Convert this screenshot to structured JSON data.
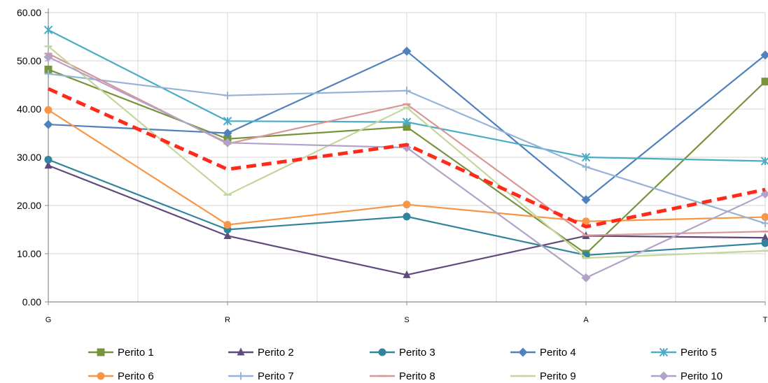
{
  "chart_data": {
    "type": "line",
    "categories": [
      "G",
      "R",
      "S",
      "A",
      "T"
    ],
    "ylim": [
      0,
      60
    ],
    "yticks": [
      "0.00",
      "10.00",
      "20.00",
      "30.00",
      "40.00",
      "50.00",
      "60.00"
    ],
    "grid": true,
    "legend_position": "bottom",
    "series": [
      {
        "name": "Perito 1",
        "color": "#77933c",
        "marker": "square",
        "values": [
          48.2,
          33.8,
          36.3,
          10.0,
          45.7
        ]
      },
      {
        "name": "Perito 2",
        "color": "#604a7b",
        "marker": "triangle",
        "values": [
          28.3,
          13.7,
          5.6,
          13.7,
          13.3
        ]
      },
      {
        "name": "Perito 3",
        "color": "#31849b",
        "marker": "circle",
        "values": [
          29.5,
          15.0,
          17.7,
          9.7,
          12.2
        ]
      },
      {
        "name": "Perito 4",
        "color": "#4f81bd",
        "marker": "diamond",
        "values": [
          36.8,
          35.0,
          52.0,
          21.2,
          51.2
        ]
      },
      {
        "name": "Perito 5",
        "color": "#4bacc6",
        "marker": "star",
        "values": [
          56.4,
          37.5,
          37.3,
          30.0,
          29.2
        ]
      },
      {
        "name": "Perito 6",
        "color": "#f79646",
        "marker": "circle",
        "values": [
          39.8,
          16.0,
          20.2,
          16.7,
          17.6
        ]
      },
      {
        "name": "Perito 7",
        "color": "#95b3d7",
        "marker": "plus",
        "values": [
          47.3,
          42.8,
          43.8,
          28.0,
          16.3
        ]
      },
      {
        "name": "Perito 8",
        "color": "#d99694",
        "marker": "dash",
        "values": [
          51.5,
          32.8,
          41.0,
          13.8,
          14.6
        ]
      },
      {
        "name": "Perito 9",
        "color": "#c3d69b",
        "marker": "dash",
        "values": [
          53.0,
          22.2,
          40.3,
          9.1,
          10.6
        ]
      },
      {
        "name": "Perito 10",
        "color": "#b3a2c7",
        "marker": "diamond",
        "values": [
          50.8,
          33.0,
          32.0,
          5.0,
          22.4
        ]
      },
      {
        "name": "",
        "color": "#ff2a1a",
        "marker": "none",
        "dashed": true,
        "values": [
          44.2,
          27.5,
          32.6,
          15.6,
          23.3
        ]
      }
    ]
  }
}
